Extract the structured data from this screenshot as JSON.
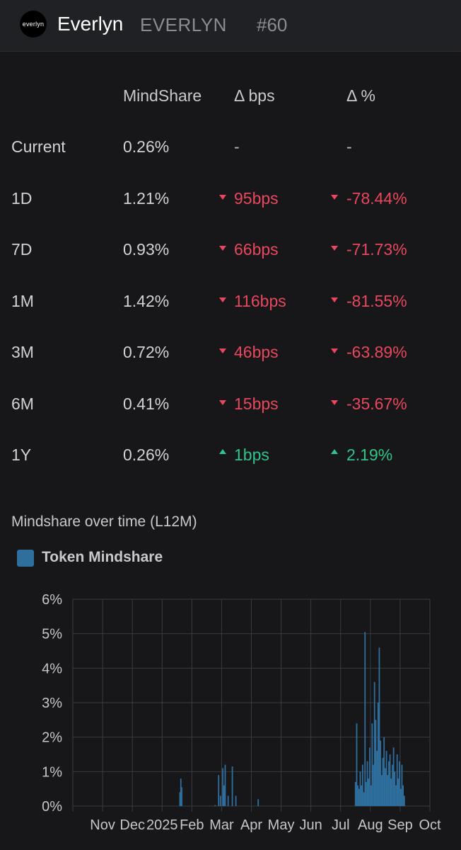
{
  "header": {
    "logo_text": "everlyn",
    "name": "Everlyn",
    "symbol": "EVERLYN",
    "rank": "#60"
  },
  "table": {
    "columns": [
      "MindShare",
      "Δ bps",
      "Δ %"
    ],
    "rows": [
      {
        "label": "Current",
        "mindshare": "0.26%",
        "bps": "-",
        "pct": "-",
        "direction": "none"
      },
      {
        "label": "1D",
        "mindshare": "1.21%",
        "bps": "95bps",
        "pct": "-78.44%",
        "direction": "down"
      },
      {
        "label": "7D",
        "mindshare": "0.93%",
        "bps": "66bps",
        "pct": "-71.73%",
        "direction": "down"
      },
      {
        "label": "1M",
        "mindshare": "1.42%",
        "bps": "116bps",
        "pct": "-81.55%",
        "direction": "down"
      },
      {
        "label": "3M",
        "mindshare": "0.72%",
        "bps": "46bps",
        "pct": "-63.89%",
        "direction": "down"
      },
      {
        "label": "6M",
        "mindshare": "0.41%",
        "bps": "15bps",
        "pct": "-35.67%",
        "direction": "down"
      },
      {
        "label": "1Y",
        "mindshare": "0.26%",
        "bps": "1bps",
        "pct": "2.19%",
        "direction": "up"
      }
    ]
  },
  "colors": {
    "down": "#e8475d",
    "up": "#2fc48b",
    "bar": "#2e6f9e",
    "grid": "#3a3b40"
  },
  "chart_data": {
    "type": "bar",
    "title": "Mindshare over time (L12M)",
    "series": [
      {
        "name": "Token Mindshare"
      }
    ],
    "yticks": [
      "0%",
      "1%",
      "2%",
      "3%",
      "4%",
      "5%",
      "6%"
    ],
    "ylim": [
      0,
      6
    ],
    "xticks": [
      "Nov",
      "Dec",
      "2025",
      "Feb",
      "Mar",
      "Apr",
      "May",
      "Jun",
      "Jul",
      "Aug",
      "Sep",
      "Oct"
    ],
    "xlim": [
      0,
      12
    ],
    "grid": true,
    "legend": "top-left",
    "bars": [
      [
        3.6,
        0.4
      ],
      [
        3.63,
        0.8
      ],
      [
        3.66,
        0.55
      ],
      [
        4.78,
        0.03
      ],
      [
        4.9,
        0.9
      ],
      [
        4.96,
        0.3
      ],
      [
        5.04,
        1.1
      ],
      [
        5.08,
        0.6
      ],
      [
        5.12,
        1.2
      ],
      [
        5.22,
        0.3
      ],
      [
        5.36,
        1.15
      ],
      [
        5.48,
        0.3
      ],
      [
        6.23,
        0.2
      ],
      [
        9.5,
        0.7
      ],
      [
        9.54,
        2.4
      ],
      [
        9.58,
        0.6
      ],
      [
        9.62,
        0.5
      ],
      [
        9.66,
        1.0
      ],
      [
        9.7,
        0.6
      ],
      [
        9.74,
        1.2
      ],
      [
        9.78,
        0.4
      ],
      [
        9.82,
        5.05
      ],
      [
        9.86,
        0.7
      ],
      [
        9.9,
        1.3
      ],
      [
        9.94,
        0.8
      ],
      [
        9.98,
        1.7
      ],
      [
        10.02,
        0.6
      ],
      [
        10.06,
        2.4
      ],
      [
        10.1,
        1.2
      ],
      [
        10.14,
        3.6
      ],
      [
        10.18,
        2.5
      ],
      [
        10.22,
        1.6
      ],
      [
        10.26,
        3.0
      ],
      [
        10.3,
        4.6
      ],
      [
        10.34,
        1.9
      ],
      [
        10.38,
        0.9
      ],
      [
        10.42,
        1.4
      ],
      [
        10.46,
        2.0
      ],
      [
        10.5,
        1.1
      ],
      [
        10.54,
        1.6
      ],
      [
        10.58,
        0.9
      ],
      [
        10.62,
        1.3
      ],
      [
        10.66,
        1.5
      ],
      [
        10.7,
        0.8
      ],
      [
        10.74,
        1.2
      ],
      [
        10.78,
        1.7
      ],
      [
        10.82,
        1.0
      ],
      [
        10.86,
        0.6
      ],
      [
        10.9,
        1.5
      ],
      [
        10.94,
        0.8
      ],
      [
        10.98,
        1.3
      ],
      [
        11.02,
        0.5
      ],
      [
        11.06,
        1.2
      ],
      [
        11.1,
        0.6
      ],
      [
        11.14,
        0.3
      ]
    ]
  }
}
